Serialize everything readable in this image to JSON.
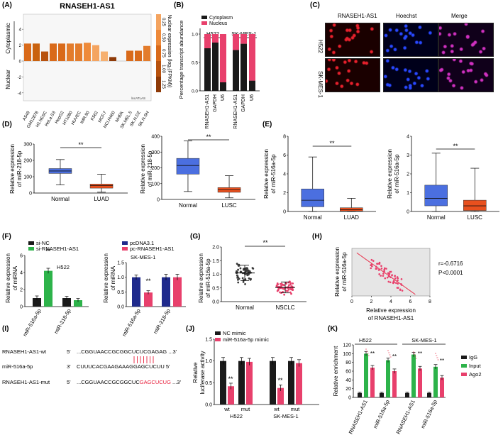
{
  "panel_labels": [
    "(A)",
    "(B)",
    "(C)",
    "(D)",
    "(E)",
    "(F)",
    "(G)",
    "(H)",
    "(I)",
    "(J)",
    "(K)"
  ],
  "panel_A": {
    "title": "RNASEH1-AS1",
    "side_top": "Cytoplasmic",
    "side_bottom": "Nuclear",
    "legend_ticks": [
      "0.25",
      "0.50",
      "0.75",
      "1.00",
      "1.25"
    ],
    "legend_label": "Nuclear expression (log₂(FPKM))",
    "legend_colors": [
      "#F4A460",
      "#EE8A3A",
      "#D96A1A",
      "#B8520E",
      "#8E3A08"
    ],
    "watermark": "lncATLAS",
    "yticks": [
      "4",
      "2",
      "0",
      "-2",
      "-4"
    ]
  },
  "panel_B": {
    "ylabel": "Percentage transcript abundance",
    "legend": [
      "Cytoplasm",
      "Nucleus"
    ],
    "groups": [
      "H522",
      "SK-MES-1"
    ],
    "yticks": [
      "0.0",
      "0.5",
      "1.0"
    ]
  },
  "panel_C": {
    "headers": [
      "RNASEH1-AS1",
      "Hoechst",
      "Merge"
    ],
    "rows": [
      "H522",
      "SK-MES-1"
    ]
  },
  "panel_D": {
    "ylabel_1": "Relative expression",
    "ylabel_2": "of miR-218-5p",
    "sig": "**"
  },
  "panel_E": {
    "ylabel_1": "Relative expression",
    "ylabel_2": "of miR-516a-5p",
    "sig": "**"
  },
  "panel_F": {
    "ylabel_1": "Relative expression",
    "ylabel_2": "of miRNA",
    "left_legend": [
      "si-NC",
      "si-RNASEH1-AS1"
    ],
    "left_cell": "H522",
    "right_legend": [
      "pcDNA3.1",
      "pc-RNASEH1-AS1"
    ],
    "right_cell": "SK-MES-1",
    "sig": "**"
  },
  "panel_G": {
    "ylabel_1": "Relative expression",
    "ylabel_2": "of miR-516a-5p",
    "sig": "**"
  },
  "panel_H": {
    "ylabel_1": "Relative expression",
    "ylabel_2": "of miR-516a-5p",
    "xlabel_1": "Relative expression",
    "xlabel_2": "of RNASEH1-AS1",
    "r_text": "r=-0.6716",
    "p_text": "P<0.0001",
    "xticks": [
      "0",
      "2",
      "4",
      "6",
      "8"
    ]
  },
  "panel_I": {
    "rows": [
      {
        "name": "RNASEH1-AS1-wt",
        "p1": "5'",
        "seq": "...CGGUAACCGCGGCUC",
        "hl": "UCGAGAG",
        "tail": "...3'",
        "hl_color": "#000000"
      },
      {
        "name": "miR-516a-5p",
        "p1": "3'",
        "seq": "    CUUUCACGAAGAAAG",
        "hl": "GAGCUCUU",
        "tail": "5'",
        "hl_color": "#000000"
      },
      {
        "name": "RNASEH1-AS1-mut",
        "p1": "5'",
        "seq": "...CGGUAACCGCGGCUC",
        "hl": "GAGCUCUG",
        "tail": "...3'",
        "hl_color": "#E8203C"
      }
    ]
  },
  "panel_J": {
    "ylabel_1": "Relative",
    "ylabel_2": "luciferase activity",
    "legend": [
      "NC mimic",
      "miR-516a-5p mimic"
    ],
    "sig": "**"
  },
  "panel_K": {
    "ylabel": "Relative enrichment",
    "legend": [
      "IgG",
      "Input",
      "Ago2"
    ],
    "groups": [
      "H522",
      "SK-MES-1"
    ],
    "sig": "**"
  },
  "chart_data": [
    {
      "panel": "A",
      "type": "bar",
      "title": "RNASEH1-AS1",
      "categories": [
        "A549",
        "GM12878",
        "H1.hESC",
        "HeLa.S3",
        "HepG2",
        "HT1080",
        "HUVEC",
        "IMR.90",
        "K562",
        "MCF.7",
        "NCI.H460",
        "NHEK",
        "SK.MEL.5",
        "SK.N.DZ",
        "SK.N.SH"
      ],
      "values": [
        2.2,
        2.2,
        1.2,
        2.2,
        2.2,
        2.2,
        2.2,
        2.3,
        2.0,
        1.2,
        0.5,
        0.0,
        1.3,
        1.3,
        1.9
      ],
      "colors": [
        "#D96A1A",
        "#C9620F",
        "#B8520E",
        "#D96A1A",
        "#D96A1A",
        "#E37C2C",
        "#E37C2C",
        "#EE8A3A",
        "#F4A460",
        "#F6B070",
        "#8E3A08",
        "#C9620F",
        "#D96A1A",
        "#D96A1A",
        "#E37C2C"
      ],
      "ylim": [
        -4,
        5
      ]
    },
    {
      "panel": "B",
      "type": "bar",
      "stacked": true,
      "categories": [
        "RNASEH1-AS1",
        "GAPDH",
        "U6",
        "RNASEH1-AS1",
        "GAPDH",
        "U6"
      ],
      "series": [
        {
          "name": "Cytoplasm",
          "color": "#1A1A1A",
          "values": [
            0.75,
            0.85,
            0.15,
            0.72,
            0.83,
            0.18
          ]
        },
        {
          "name": "Nucleus",
          "color": "#E8406C",
          "values": [
            0.25,
            0.15,
            0.85,
            0.28,
            0.17,
            0.82
          ]
        }
      ],
      "ylim": [
        0,
        1.1
      ]
    },
    {
      "panel": "D-left",
      "type": "box",
      "categories": [
        "Normal",
        "LUAD"
      ],
      "boxes": [
        {
          "min": 50,
          "q1": 120,
          "median": 135,
          "q3": 150,
          "max": 205,
          "color": "#4B6FE0"
        },
        {
          "min": 5,
          "q1": 30,
          "median": 45,
          "q3": 55,
          "max": 115,
          "color": "#E8501E"
        }
      ],
      "yticks": [
        0,
        100,
        200,
        300
      ],
      "ylim": [
        0,
        300
      ]
    },
    {
      "panel": "D-right",
      "type": "box",
      "categories": [
        "Normal",
        "LUSC"
      ],
      "boxes": [
        {
          "min": 50,
          "q1": 160,
          "median": 215,
          "q3": 260,
          "max": 370,
          "color": "#4B6FE0"
        },
        {
          "min": 10,
          "q1": 45,
          "median": 60,
          "q3": 75,
          "max": 150,
          "color": "#E8501E"
        }
      ],
      "yticks": [
        0,
        100,
        200,
        300,
        400
      ],
      "ylim": [
        0,
        400
      ]
    },
    {
      "panel": "E-left",
      "type": "box",
      "categories": [
        "Normal",
        "LUAD"
      ],
      "boxes": [
        {
          "min": 0,
          "q1": 0.5,
          "median": 1.2,
          "q3": 2.4,
          "max": 5.8,
          "color": "#4B6FE0"
        },
        {
          "min": 0,
          "q1": 0.05,
          "median": 0.2,
          "q3": 0.4,
          "max": 1.4,
          "color": "#E8501E"
        }
      ],
      "yticks": [
        0,
        2,
        4,
        6,
        8
      ],
      "ylim": [
        0,
        8
      ]
    },
    {
      "panel": "E-right",
      "type": "box",
      "categories": [
        "Normal",
        "LUSC"
      ],
      "boxes": [
        {
          "min": 0,
          "q1": 0.3,
          "median": 0.7,
          "q3": 1.4,
          "max": 3.1,
          "color": "#4B6FE0"
        },
        {
          "min": 0,
          "q1": 0.05,
          "median": 0.3,
          "q3": 0.6,
          "max": 2.3,
          "color": "#E8501E"
        }
      ],
      "yticks": [
        0,
        1,
        2,
        3,
        4
      ],
      "ylim": [
        0,
        4
      ]
    },
    {
      "panel": "F-left",
      "type": "bar",
      "categories": [
        "miR-516a-5p",
        "miR-218-5p"
      ],
      "series": [
        {
          "name": "si-NC",
          "color": "#1A1A1A",
          "values": [
            1.0,
            1.0
          ],
          "errors": [
            0.25,
            0.2
          ]
        },
        {
          "name": "si-RNASEH1-AS1",
          "color": "#2DB34A",
          "values": [
            4.2,
            0.75
          ],
          "errors": [
            0.3,
            0.2
          ]
        }
      ],
      "yticks": [
        0,
        2,
        4,
        6
      ],
      "ylim": [
        0,
        6
      ]
    },
    {
      "panel": "F-right",
      "type": "bar",
      "categories": [
        "miR-516a-5p",
        "miR-218-5p"
      ],
      "series": [
        {
          "name": "pcDNA3.1",
          "color": "#1F2A8C",
          "values": [
            1.0,
            1.0
          ],
          "errors": [
            0.08,
            0.1
          ]
        },
        {
          "name": "pc-RNASEH1-AS1",
          "color": "#E8406C",
          "values": [
            0.48,
            1.0
          ],
          "errors": [
            0.06,
            0.1
          ]
        }
      ],
      "yticks": [
        0.0,
        0.5,
        1.0,
        1.5
      ],
      "ylim": [
        0,
        1.5
      ]
    },
    {
      "panel": "G",
      "type": "scatter",
      "categories": [
        "Normal",
        "NSCLC"
      ],
      "means": [
        1.05,
        0.52
      ],
      "sd": [
        0.28,
        0.2
      ],
      "yticks": [
        0.0,
        0.5,
        1.0,
        1.5,
        2.0
      ],
      "ylim": [
        0,
        2.0
      ]
    },
    {
      "panel": "H",
      "type": "scatter",
      "xlim": [
        0,
        8
      ],
      "ylim": [
        0,
        1.6
      ],
      "fit": {
        "x": [
          0.5,
          6.5
        ],
        "y": [
          1.45,
          0.05
        ]
      }
    },
    {
      "panel": "J",
      "type": "bar",
      "categories": [
        "wt",
        "mut",
        "wt",
        "mut"
      ],
      "groups": [
        "H522",
        "SK-MES-1"
      ],
      "series": [
        {
          "name": "NC mimic",
          "color": "#1A1A1A",
          "values": [
            1.0,
            1.0,
            1.0,
            1.0
          ],
          "errors": [
            0.08,
            0.08,
            0.08,
            0.08
          ]
        },
        {
          "name": "miR-516a-5p mimic",
          "color": "#E8406C",
          "values": [
            0.42,
            0.98,
            0.38,
            0.95
          ],
          "errors": [
            0.07,
            0.08,
            0.07,
            0.08
          ]
        }
      ],
      "yticks": [
        0.0,
        0.5,
        1.0,
        1.5
      ],
      "ylim": [
        0,
        1.5
      ]
    },
    {
      "panel": "K",
      "type": "bar",
      "categories": [
        "RNASEH1-AS1",
        "miR-516a-5p",
        "RNASEH1-AS1",
        "miR-516a-5p"
      ],
      "series": [
        {
          "name": "IgG",
          "color": "#1A1A1A",
          "values": [
            10,
            10,
            10,
            10
          ],
          "errors": [
            2,
            2,
            2,
            2
          ]
        },
        {
          "name": "Input",
          "color": "#2DB34A",
          "values": [
            100,
            85,
            98,
            70
          ],
          "errors": [
            5,
            5,
            5,
            5
          ]
        },
        {
          "name": "Ago2",
          "color": "#E8406C",
          "values": [
            68,
            60,
            66,
            45
          ],
          "errors": [
            5,
            5,
            5,
            5
          ]
        }
      ],
      "yticks": [
        0,
        20,
        40,
        60,
        80,
        100,
        120
      ],
      "ylim": [
        0,
        120
      ]
    }
  ]
}
